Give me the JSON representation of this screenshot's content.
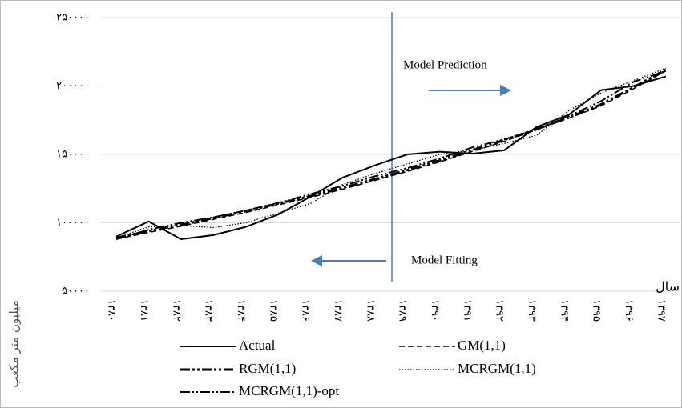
{
  "chart_data": {
    "type": "line",
    "y_label": "میلیون متر مکعب",
    "x_label": "سال",
    "annotations": [
      "Model Prediction",
      "Model Fitting"
    ],
    "categories": [
      "۱۳۸۰",
      "۱۳۸۱",
      "۱۳۸۲",
      "۱۳۸۳",
      "۱۳۸۴",
      "۱۳۸۵",
      "۱۳۸۶",
      "۱۳۸۷",
      "۱۳۸۸",
      "۱۳۸۹",
      "۱۳۹۰",
      "۱۳۹۱",
      "۱۳۹۲",
      "۱۳۹۳",
      "۱۳۹۴",
      "۱۳۹۵",
      "۱۳۹۶",
      "۱۳۹۷"
    ],
    "series": [
      {
        "name": "Actual",
        "color": "#000000",
        "values": [
          90000,
          101000,
          88000,
          91000,
          97000,
          106000,
          119000,
          133000,
          142000,
          150000,
          152000,
          150500,
          153000,
          170000,
          179000,
          197000,
          200000,
          207000
        ]
      },
      {
        "name": "GM(1,1)",
        "color": "#000000",
        "values": [
          88000,
          93000,
          97500,
          102500,
          107500,
          113000,
          118500,
          124500,
          131000,
          137500,
          144500,
          152000,
          159500,
          168000,
          176500,
          185500,
          198000,
          211000
        ]
      },
      {
        "name": "RGM(1,1)",
        "color": "#000000",
        "values": [
          89000,
          94000,
          98500,
          103500,
          108500,
          114000,
          119500,
          125500,
          132000,
          138500,
          145500,
          153000,
          160500,
          168500,
          177000,
          186500,
          199000,
          212000
        ]
      },
      {
        "name": "MCRGM(1,1)",
        "color": "#000000",
        "values": [
          89000,
          97000,
          98000,
          96500,
          100000,
          107000,
          114000,
          128000,
          136000,
          143000,
          150000,
          153000,
          158000,
          164000,
          182000,
          195000,
          204000,
          213000
        ]
      },
      {
        "name": "MCRGM(1,1)-opt",
        "color": "#000000",
        "values": [
          88000,
          95000,
          100000,
          104000,
          109000,
          114500,
          121000,
          127000,
          134000,
          140000,
          147000,
          155000,
          161000,
          168000,
          178000,
          189000,
          203000,
          211000
        ]
      }
    ],
    "ylim": [
      50000,
      250000
    ],
    "yticks": [
      {
        "value": 50000,
        "label": "۵۰۰۰۰"
      },
      {
        "value": 100000,
        "label": "۱۰۰۰۰۰"
      },
      {
        "value": 150000,
        "label": "۱۵۰۰۰۰"
      },
      {
        "value": 200000,
        "label": "۲۰۰۰۰۰"
      },
      {
        "value": 250000,
        "label": "۲۵۰۰۰۰"
      }
    ],
    "grid": true
  }
}
